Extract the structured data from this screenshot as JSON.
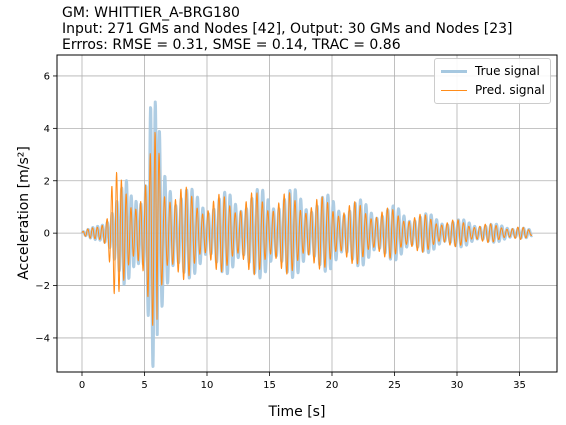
{
  "title_lines": [
    "GM: WHITTIER_A-BRG180",
    "Input: 271 GMs and Nodes [42], Output: 30 GMs and Nodes [23]",
    "Errros: RMSE = 0.31, SMSE = 0.14, TRAC = 0.86"
  ],
  "chart_data": {
    "type": "line",
    "xlabel": "Time [s]",
    "ylabel": "Acceleration [m/s²]",
    "xlim": [
      -2,
      38
    ],
    "ylim": [
      -5.3,
      6.8
    ],
    "xticks": [
      0,
      5,
      10,
      15,
      20,
      25,
      30,
      35
    ],
    "yticks": [
      -4,
      -2,
      0,
      2,
      4,
      6
    ],
    "grid": true,
    "legend_position": "top-right",
    "series": [
      {
        "name": "True signal",
        "color": "#a6c8e0",
        "x": [
          0,
          1,
          1.5,
          2,
          2.5,
          3,
          3.5,
          4,
          4.5,
          5,
          5.5,
          6,
          6.5,
          7,
          7.5,
          8,
          9,
          10,
          11,
          12,
          13,
          14,
          15,
          16,
          17,
          18,
          19,
          20,
          21,
          22,
          23,
          24,
          25,
          26,
          27,
          28,
          29,
          30,
          31,
          32,
          33,
          34,
          35,
          36
        ],
        "envelope": [
          0.05,
          0.25,
          0.4,
          0.8,
          1.4,
          1.6,
          2.1,
          1.7,
          2.2,
          2.3,
          6.2,
          4.8,
          2.6,
          2.8,
          2.1,
          2.0,
          1.6,
          1.5,
          1.55,
          1.6,
          1.65,
          1.7,
          1.75,
          1.75,
          1.7,
          1.6,
          1.5,
          1.45,
          1.35,
          1.3,
          1.2,
          1.1,
          1.05,
          0.9,
          0.8,
          0.72,
          0.62,
          0.55,
          0.48,
          0.42,
          0.35,
          0.3,
          0.28,
          0.1
        ]
      },
      {
        "name": "Pred. signal",
        "color": "#ff8c1a",
        "x": [
          0,
          1,
          1.5,
          2,
          2.5,
          3,
          3.5,
          4,
          4.5,
          5,
          5.5,
          6,
          6.5,
          7,
          7.5,
          8,
          9,
          10,
          11,
          12,
          13,
          14,
          15,
          16,
          17,
          18,
          19,
          20,
          21,
          22,
          23,
          24,
          25,
          26,
          27,
          28,
          29,
          30,
          31,
          32,
          33,
          34,
          35,
          36
        ],
        "envelope": [
          0.05,
          0.3,
          0.5,
          0.9,
          2.6,
          2.2,
          1.9,
          1.6,
          2.0,
          2.1,
          3.2,
          4.3,
          2.3,
          2.4,
          2.0,
          1.9,
          1.5,
          1.45,
          1.5,
          1.5,
          1.55,
          1.6,
          1.6,
          1.6,
          1.55,
          1.5,
          1.4,
          1.35,
          1.25,
          1.2,
          1.1,
          1.0,
          0.95,
          0.85,
          0.75,
          0.68,
          0.58,
          0.52,
          0.45,
          0.4,
          0.34,
          0.3,
          0.27,
          0.1
        ]
      }
    ]
  }
}
